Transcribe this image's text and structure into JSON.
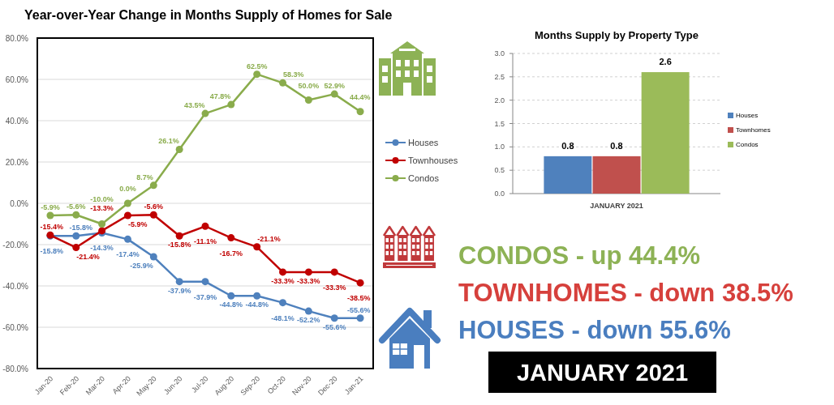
{
  "chart_data": [
    {
      "type": "line",
      "title": "Year-over-Year Change in Months Supply of Homes for Sale",
      "categories": [
        "Jan-20",
        "Feb-20",
        "Mar-20",
        "Apr-20",
        "May-20",
        "Jun-20",
        "Jul-20",
        "Aug-20",
        "Sep-20",
        "Oct-20",
        "Nov-20",
        "Dec-20",
        "Jan-21"
      ],
      "series": [
        {
          "name": "Houses",
          "color": "#4f81bd",
          "values": [
            -15.8,
            -15.8,
            -14.3,
            -17.4,
            -25.9,
            -37.9,
            -37.9,
            -44.8,
            -44.8,
            -48.1,
            -52.2,
            -55.6,
            -55.6
          ],
          "value_labels": [
            "-15.8%",
            "-15.8%",
            "-14.3%",
            "-17.4%",
            "-25.9%",
            "-37.9%",
            "-37.9%",
            "-44.8%",
            "-44.8%",
            "-48.1%",
            "-52.2%",
            "-55.6%",
            "-55.6%"
          ]
        },
        {
          "name": "Townhouses",
          "color": "#c00000",
          "values": [
            -15.4,
            -21.4,
            -13.3,
            -5.9,
            -5.6,
            -15.8,
            -11.1,
            -16.7,
            -21.1,
            -33.3,
            -33.3,
            -33.3,
            -38.5
          ],
          "value_labels": [
            "-15.4%",
            "-21.4%",
            "-13.3%",
            "-5.9%",
            "-5.6%",
            "-15.8%",
            "-11.1%",
            "-16.7%",
            "-21.1%",
            "-33.3%",
            "-33.3%",
            "-33.3%",
            "-38.5%"
          ]
        },
        {
          "name": "Condos",
          "color": "#8aac4c",
          "values": [
            -5.9,
            -5.6,
            -10.0,
            0.0,
            8.7,
            26.1,
            43.5,
            47.8,
            62.5,
            58.3,
            50.0,
            52.9,
            44.4
          ],
          "value_labels": [
            "-5.9%",
            "-5.6%",
            "-10.0%",
            "0.0%",
            "8.7%",
            "26.1%",
            "43.5%",
            "47.8%",
            "62.5%",
            "58.3%",
            "50.0%",
            "52.9%",
            "44.4%"
          ]
        }
      ],
      "ylim": [
        -80,
        80
      ],
      "yticks": [
        {
          "value": -80,
          "label": "-80.0%"
        },
        {
          "value": -60,
          "label": "-60.0%"
        },
        {
          "value": -40,
          "label": "-40.0%"
        },
        {
          "value": -20,
          "label": "-20.0%"
        },
        {
          "value": 0,
          "label": "0.0%"
        },
        {
          "value": 20,
          "label": "20.0%"
        },
        {
          "value": 40,
          "label": "40.0%"
        },
        {
          "value": 60,
          "label": "60.0%"
        },
        {
          "value": 80,
          "label": "80.0%"
        }
      ],
      "grid": "y",
      "legend": "right",
      "marker": "circle"
    },
    {
      "type": "bar",
      "title": "Months Supply by Property Type",
      "categories": [
        "JANUARY 2021"
      ],
      "series": [
        {
          "name": "Houses",
          "color": "#4f81bd",
          "values": [
            0.8
          ]
        },
        {
          "name": "Townhomes",
          "color": "#c0504d",
          "values": [
            0.8
          ]
        },
        {
          "name": "Condos",
          "color": "#9bbb59",
          "values": [
            2.6
          ]
        }
      ],
      "ylim": [
        0,
        3
      ],
      "yticks": [
        {
          "value": 0,
          "label": "0.0"
        },
        {
          "value": 0.5,
          "label": "0.5"
        },
        {
          "value": 1,
          "label": "1.0"
        },
        {
          "value": 1.5,
          "label": "1.5"
        },
        {
          "value": 2,
          "label": "2.0"
        },
        {
          "value": 2.5,
          "label": "2.5"
        },
        {
          "value": 3,
          "label": "3.0"
        }
      ],
      "grid": "y",
      "legend": "right",
      "data_labels": true
    },
    {
      "type": "other",
      "title": "JANUARY 2021",
      "annotations": [
        "CONDOS - up 44.4%",
        "TOWNHOMES - down 38.5%",
        "HOUSES - down 55.6%"
      ],
      "colors": [
        "#8db255",
        "#d6403c",
        "#4a7ebf"
      ]
    }
  ]
}
